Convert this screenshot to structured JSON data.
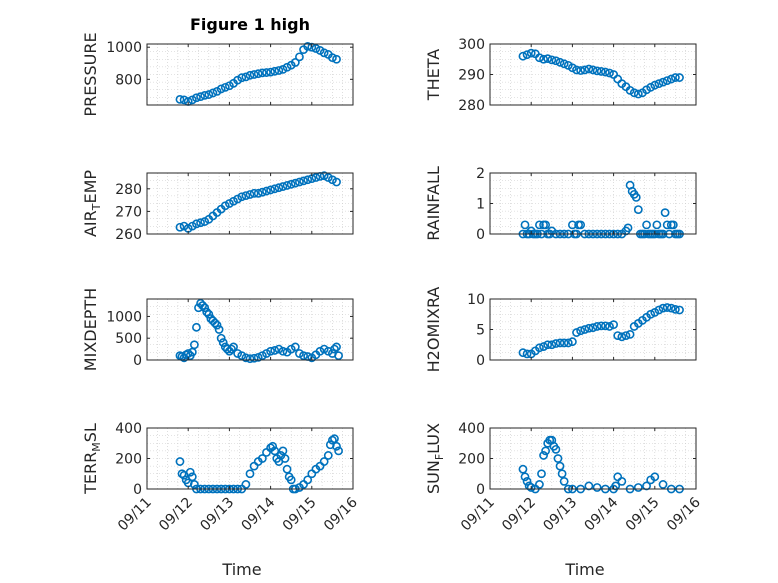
{
  "figure": {
    "title": "Figure 1 high",
    "xlabel": "Time"
  },
  "chart_data": [
    {
      "type": "scatter",
      "ylabel": "PRESSURE",
      "ylim": [
        640,
        1020
      ],
      "yticks": [
        800,
        1000
      ],
      "xlim": [
        0,
        5
      ],
      "xticks": [
        "09/11",
        "09/12",
        "09/13",
        "09/14",
        "09/15",
        "09/16"
      ],
      "grid": true,
      "x": [
        0.8,
        0.9,
        1.0,
        1.1,
        1.2,
        1.3,
        1.4,
        1.5,
        1.6,
        1.7,
        1.8,
        1.9,
        2.0,
        2.1,
        2.2,
        2.3,
        2.4,
        2.5,
        2.6,
        2.7,
        2.8,
        2.9,
        3.0,
        3.1,
        3.2,
        3.3,
        3.4,
        3.5,
        3.6,
        3.7,
        3.8,
        3.9,
        4.0,
        4.1,
        4.2,
        4.3,
        4.4,
        4.5,
        4.6
      ],
      "y": [
        675,
        672,
        662,
        672,
        685,
        692,
        700,
        705,
        715,
        725,
        740,
        750,
        760,
        775,
        795,
        810,
        815,
        825,
        830,
        835,
        840,
        842,
        845,
        850,
        855,
        862,
        875,
        888,
        905,
        940,
        985,
        1005,
        1000,
        992,
        980,
        965,
        955,
        935,
        925
      ]
    },
    {
      "type": "scatter",
      "ylabel": "THETA",
      "ylim": [
        280,
        300
      ],
      "yticks": [
        280,
        290,
        300
      ],
      "xlim": [
        0,
        5
      ],
      "xticks": [
        "09/11",
        "09/12",
        "09/13",
        "09/14",
        "09/15",
        "09/16"
      ],
      "grid": true,
      "x": [
        0.8,
        0.9,
        1.0,
        1.1,
        1.2,
        1.3,
        1.4,
        1.5,
        1.6,
        1.7,
        1.8,
        1.9,
        2.0,
        2.1,
        2.2,
        2.3,
        2.4,
        2.5,
        2.6,
        2.7,
        2.8,
        2.9,
        3.0,
        3.1,
        3.2,
        3.3,
        3.4,
        3.5,
        3.6,
        3.7,
        3.8,
        3.9,
        4.0,
        4.1,
        4.2,
        4.3,
        4.4,
        4.5,
        4.6
      ],
      "y": [
        296,
        296.5,
        297,
        296.8,
        295.5,
        295,
        295.2,
        294.8,
        294.5,
        294,
        293.5,
        293,
        292.2,
        291.5,
        291.3,
        291.5,
        291.8,
        291.5,
        291.2,
        291,
        290.8,
        290.5,
        290,
        288.5,
        287,
        286,
        284.8,
        284,
        283.6,
        284,
        285,
        285.8,
        286.5,
        287,
        287.5,
        288,
        288.5,
        289,
        289
      ]
    },
    {
      "type": "scatter",
      "ylabel": "AIR_TEMP",
      "ylim": [
        260,
        287
      ],
      "yticks": [
        260,
        270,
        280
      ],
      "xlim": [
        0,
        5
      ],
      "xticks": [
        "09/11",
        "09/12",
        "09/13",
        "09/14",
        "09/15",
        "09/16"
      ],
      "grid": true,
      "x": [
        0.8,
        0.9,
        1.0,
        1.1,
        1.2,
        1.3,
        1.4,
        1.5,
        1.6,
        1.7,
        1.8,
        1.9,
        2.0,
        2.1,
        2.2,
        2.3,
        2.4,
        2.5,
        2.6,
        2.7,
        2.8,
        2.9,
        3.0,
        3.1,
        3.2,
        3.3,
        3.4,
        3.5,
        3.6,
        3.7,
        3.8,
        3.9,
        4.0,
        4.1,
        4.2,
        4.3,
        4.4,
        4.5,
        4.6
      ],
      "y": [
        263,
        263.5,
        262.5,
        263.5,
        264.5,
        265,
        265.5,
        266.5,
        268,
        269.5,
        271,
        272.5,
        273.5,
        274.5,
        275.5,
        276.5,
        277,
        277.5,
        278,
        278,
        278.5,
        279,
        279.5,
        280,
        280.5,
        281,
        281.5,
        282,
        282.5,
        283,
        283.5,
        284,
        284.5,
        285,
        285.5,
        285.8,
        285,
        284,
        283
      ]
    },
    {
      "type": "scatter",
      "ylabel": "RAINFALL",
      "ylim": [
        0,
        2
      ],
      "yticks": [
        0,
        1,
        2
      ],
      "xlim": [
        0,
        5
      ],
      "xticks": [
        "09/11",
        "09/12",
        "09/13",
        "09/14",
        "09/15",
        "09/16"
      ],
      "grid": true,
      "x": [
        0.8,
        0.85,
        0.9,
        0.95,
        1.0,
        1.05,
        1.1,
        1.15,
        1.2,
        1.25,
        1.3,
        1.35,
        1.4,
        1.45,
        1.5,
        1.6,
        1.7,
        1.8,
        1.9,
        2.0,
        2.05,
        2.1,
        2.15,
        2.2,
        2.3,
        2.4,
        2.5,
        2.6,
        2.7,
        2.8,
        2.9,
        3.0,
        3.1,
        3.2,
        3.3,
        3.35,
        3.4,
        3.45,
        3.5,
        3.55,
        3.6,
        3.65,
        3.7,
        3.75,
        3.8,
        3.85,
        3.9,
        3.95,
        4.0,
        4.05,
        4.1,
        4.15,
        4.2,
        4.25,
        4.3,
        4.35,
        4.4,
        4.45,
        4.5,
        4.55,
        4.6
      ],
      "y": [
        0,
        0.3,
        0,
        0,
        0.1,
        0,
        0,
        0,
        0.3,
        0,
        0.3,
        0.3,
        0,
        0,
        0.1,
        0,
        0,
        0,
        0,
        0.3,
        0,
        0,
        0.3,
        0.3,
        0,
        0,
        0,
        0,
        0,
        0,
        0,
        0,
        0,
        0,
        0.1,
        0.2,
        1.6,
        1.4,
        1.3,
        1.2,
        0.8,
        0,
        0,
        0,
        0.3,
        0,
        0,
        0,
        0,
        0.3,
        0,
        0,
        0,
        0.7,
        0.3,
        0,
        0.3,
        0.3,
        0,
        0,
        0
      ]
    },
    {
      "type": "scatter",
      "ylabel": "MIXDEPTH",
      "ylim": [
        0,
        1400
      ],
      "yticks": [
        0,
        500,
        1000
      ],
      "xlim": [
        0,
        5
      ],
      "xticks": [
        "09/11",
        "09/12",
        "09/13",
        "09/14",
        "09/15",
        "09/16"
      ],
      "grid": true,
      "x": [
        0.8,
        0.85,
        0.9,
        0.95,
        1.0,
        1.05,
        1.1,
        1.15,
        1.2,
        1.25,
        1.3,
        1.35,
        1.4,
        1.45,
        1.5,
        1.55,
        1.6,
        1.65,
        1.7,
        1.75,
        1.8,
        1.85,
        1.9,
        1.95,
        2.0,
        2.05,
        2.1,
        2.2,
        2.3,
        2.4,
        2.5,
        2.6,
        2.7,
        2.8,
        2.9,
        3.0,
        3.1,
        3.2,
        3.3,
        3.4,
        3.5,
        3.6,
        3.7,
        3.8,
        3.9,
        4.0,
        4.1,
        4.2,
        4.3,
        4.4,
        4.5,
        4.55,
        4.6,
        4.65
      ],
      "y": [
        100,
        80,
        50,
        120,
        150,
        100,
        180,
        350,
        750,
        1200,
        1300,
        1250,
        1200,
        1100,
        1050,
        950,
        900,
        850,
        800,
        700,
        500,
        400,
        300,
        250,
        200,
        250,
        300,
        150,
        100,
        50,
        30,
        40,
        60,
        100,
        150,
        200,
        220,
        250,
        200,
        180,
        250,
        300,
        150,
        100,
        80,
        50,
        120,
        200,
        250,
        200,
        150,
        250,
        300,
        100
      ]
    },
    {
      "type": "scatter",
      "ylabel": "H2OMIXRA",
      "ylim": [
        0,
        10
      ],
      "yticks": [
        0,
        5,
        10
      ],
      "xlim": [
        0,
        5
      ],
      "xticks": [
        "09/11",
        "09/12",
        "09/13",
        "09/14",
        "09/15",
        "09/16"
      ],
      "grid": true,
      "x": [
        0.8,
        0.9,
        1.0,
        1.1,
        1.2,
        1.3,
        1.4,
        1.5,
        1.6,
        1.7,
        1.8,
        1.9,
        2.0,
        2.1,
        2.2,
        2.3,
        2.4,
        2.5,
        2.6,
        2.7,
        2.8,
        2.9,
        3.0,
        3.1,
        3.2,
        3.3,
        3.4,
        3.5,
        3.6,
        3.7,
        3.8,
        3.9,
        4.0,
        4.1,
        4.2,
        4.3,
        4.4,
        4.5,
        4.6
      ],
      "y": [
        1.2,
        1,
        1,
        1.5,
        2,
        2.2,
        2.5,
        2.5,
        2.7,
        2.8,
        2.8,
        2.8,
        3,
        4.5,
        4.8,
        5,
        5.2,
        5.3,
        5.5,
        5.6,
        5.6,
        5.5,
        5.8,
        4,
        3.8,
        4,
        4.2,
        5.5,
        6,
        6.5,
        7,
        7.5,
        7.8,
        8.2,
        8.5,
        8.6,
        8.5,
        8.3,
        8.2
      ]
    },
    {
      "type": "scatter",
      "ylabel": "TERR_MSL",
      "ylim": [
        0,
        400
      ],
      "yticks": [
        0,
        200,
        400
      ],
      "xlim": [
        0,
        5
      ],
      "xticks": [
        "09/11",
        "09/12",
        "09/13",
        "09/14",
        "09/15",
        "09/16"
      ],
      "grid": true,
      "x": [
        0.8,
        0.85,
        0.9,
        0.95,
        1.0,
        1.05,
        1.1,
        1.15,
        1.2,
        1.3,
        1.4,
        1.5,
        1.6,
        1.7,
        1.8,
        1.9,
        2.0,
        2.1,
        2.2,
        2.3,
        2.4,
        2.5,
        2.6,
        2.7,
        2.8,
        2.9,
        3.0,
        3.05,
        3.1,
        3.15,
        3.2,
        3.25,
        3.3,
        3.35,
        3.4,
        3.45,
        3.5,
        3.55,
        3.6,
        3.7,
        3.8,
        3.9,
        4.0,
        4.1,
        4.2,
        4.3,
        4.4,
        4.45,
        4.5,
        4.55,
        4.6,
        4.65
      ],
      "y": [
        180,
        100,
        90,
        60,
        40,
        110,
        80,
        30,
        0,
        0,
        0,
        0,
        0,
        0,
        0,
        0,
        0,
        0,
        0,
        0,
        30,
        100,
        150,
        180,
        200,
        240,
        270,
        280,
        250,
        200,
        180,
        220,
        250,
        200,
        130,
        80,
        60,
        0,
        0,
        10,
        30,
        60,
        100,
        130,
        150,
        180,
        220,
        290,
        320,
        330,
        280,
        250
      ]
    },
    {
      "type": "scatter",
      "ylabel": "SUN_FLUX",
      "ylim": [
        0,
        400
      ],
      "yticks": [
        0,
        200,
        400
      ],
      "xlim": [
        0,
        5
      ],
      "xticks": [
        "09/11",
        "09/12",
        "09/13",
        "09/14",
        "09/15",
        "09/16"
      ],
      "grid": true,
      "x": [
        0.8,
        0.85,
        0.9,
        0.95,
        1.0,
        1.1,
        1.2,
        1.25,
        1.3,
        1.35,
        1.4,
        1.45,
        1.5,
        1.55,
        1.6,
        1.65,
        1.7,
        1.75,
        1.8,
        1.9,
        2.0,
        2.2,
        2.4,
        2.6,
        2.8,
        3.0,
        3.05,
        3.1,
        3.2,
        3.4,
        3.6,
        3.8,
        3.9,
        4.0,
        4.2,
        4.4,
        4.6
      ],
      "y": [
        130,
        80,
        50,
        20,
        10,
        0,
        30,
        100,
        220,
        250,
        300,
        320,
        320,
        280,
        260,
        200,
        150,
        100,
        50,
        0,
        0,
        0,
        20,
        10,
        0,
        0,
        20,
        80,
        50,
        0,
        10,
        20,
        60,
        80,
        30,
        0,
        0
      ]
    }
  ]
}
